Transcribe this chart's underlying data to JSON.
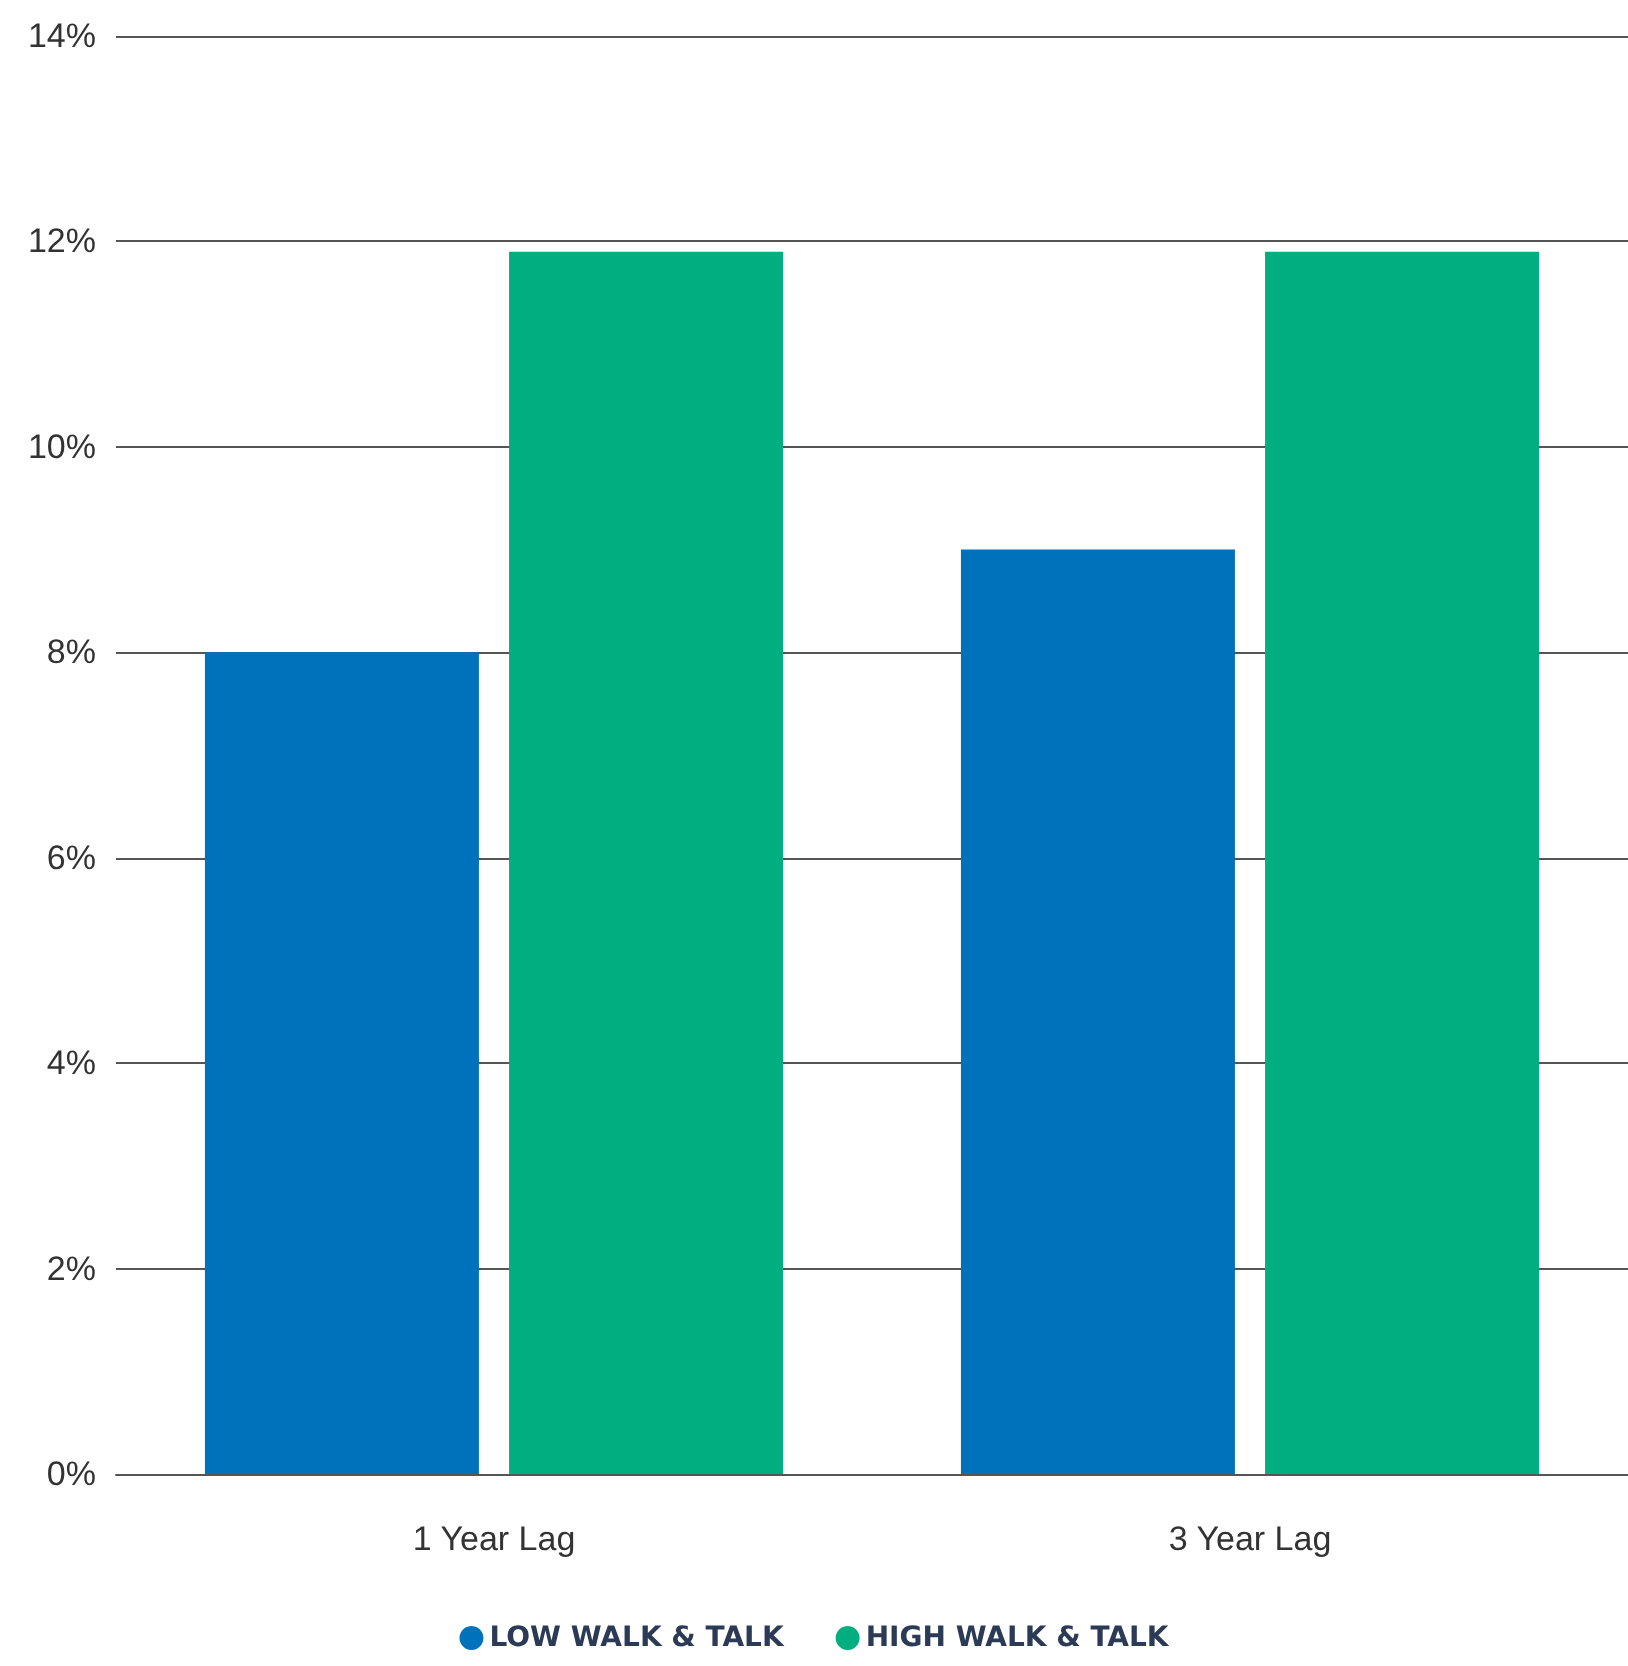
{
  "chart_data": {
    "type": "bar",
    "categories": [
      "1 Year Lag",
      "3 Year Lag"
    ],
    "series": [
      {
        "name": "LOW WALK & TALK",
        "color": "#0072bc",
        "values": [
          8,
          9
        ]
      },
      {
        "name": "HIGH WALK & TALK",
        "color": "#00ae80",
        "values": [
          11.9,
          11.9
        ]
      }
    ],
    "ylim": [
      0,
      14
    ],
    "yticks": [
      {
        "value": 0,
        "label": "0%"
      },
      {
        "value": 2,
        "label": "2%"
      },
      {
        "value": 4,
        "label": "4%"
      },
      {
        "value": 6,
        "label": "6%"
      },
      {
        "value": 8,
        "label": "8%"
      },
      {
        "value": 10,
        "label": "10%"
      },
      {
        "value": 12,
        "label": "12%"
      },
      {
        "value": 14,
        "label": "14%"
      }
    ],
    "grid": "y",
    "legend": "bottom"
  }
}
